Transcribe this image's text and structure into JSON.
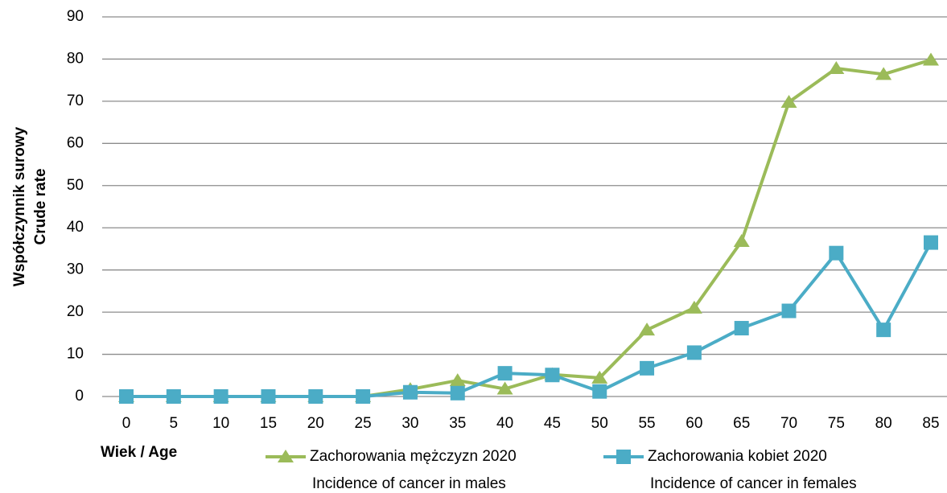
{
  "chart_data": {
    "type": "line",
    "ylabel": [
      "Współczynnik surowy",
      "Crude rate"
    ],
    "xlabel": "Wiek / Age",
    "x": [
      0,
      5,
      10,
      15,
      20,
      25,
      30,
      35,
      40,
      45,
      50,
      55,
      60,
      65,
      70,
      75,
      80,
      85
    ],
    "series": [
      {
        "name": "Zachorowania mężczyzn 2020",
        "name_en": "Incidence of cancer in males",
        "color": "#9bbb59",
        "marker": "triangle",
        "values": [
          0,
          0,
          0,
          0,
          0,
          0,
          1.7,
          3.8,
          1.8,
          5.2,
          4.4,
          15.8,
          21,
          36.8,
          69.8,
          77.8,
          76.4,
          79.8
        ]
      },
      {
        "name": "Zachorowania kobiet 2020",
        "name_en": "Incidence of cancer in females",
        "color": "#4bacc6",
        "marker": "square",
        "values": [
          0,
          0,
          0,
          0,
          0,
          0,
          1,
          0.8,
          5.5,
          5.1,
          1.2,
          6.7,
          10.4,
          16.2,
          20.3,
          34,
          15.8,
          36.5
        ]
      }
    ],
    "ylim": [
      0,
      90
    ],
    "yticks": [
      0,
      10,
      20,
      30,
      40,
      50,
      60,
      70,
      80,
      90
    ],
    "grid": true
  }
}
